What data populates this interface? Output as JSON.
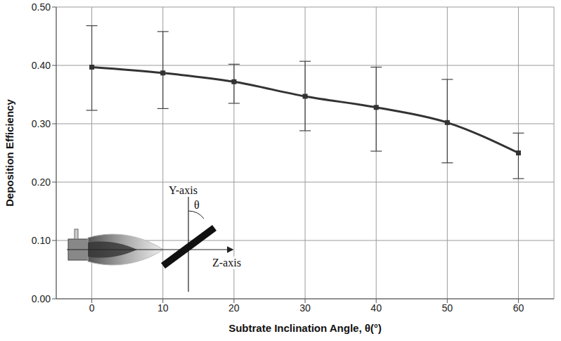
{
  "chart_data": {
    "type": "line",
    "x_label": "Subtrate Inclination Angle, θ(°)",
    "y_label": "Deposition Efficiency",
    "x": [
      0,
      10,
      20,
      30,
      40,
      50,
      60
    ],
    "values": [
      0.397,
      0.387,
      0.372,
      0.347,
      0.328,
      0.302,
      0.25
    ],
    "error_low": [
      0.323,
      0.326,
      0.335,
      0.288,
      0.253,
      0.233,
      0.206
    ],
    "error_high": [
      0.468,
      0.458,
      0.402,
      0.407,
      0.397,
      0.376,
      0.284
    ],
    "color": "#333333",
    "marker": "square",
    "line_style": "solid",
    "xlim": [
      -5,
      65
    ],
    "xticks": [
      0,
      10,
      20,
      30,
      40,
      50,
      60
    ],
    "ylim": [
      0,
      0.5
    ],
    "yticks": [
      {
        "value": 0,
        "label": "0.00"
      },
      {
        "value": 0.1,
        "label": "0.10"
      },
      {
        "value": 0.2,
        "label": "0.20"
      },
      {
        "value": 0.3,
        "label": "0.30"
      },
      {
        "value": 0.4,
        "label": "0.40"
      },
      {
        "value": 0.5,
        "label": "0.50"
      }
    ],
    "grid": true,
    "annotations": [
      "Y-axis",
      "Z-axis",
      "θ"
    ]
  }
}
